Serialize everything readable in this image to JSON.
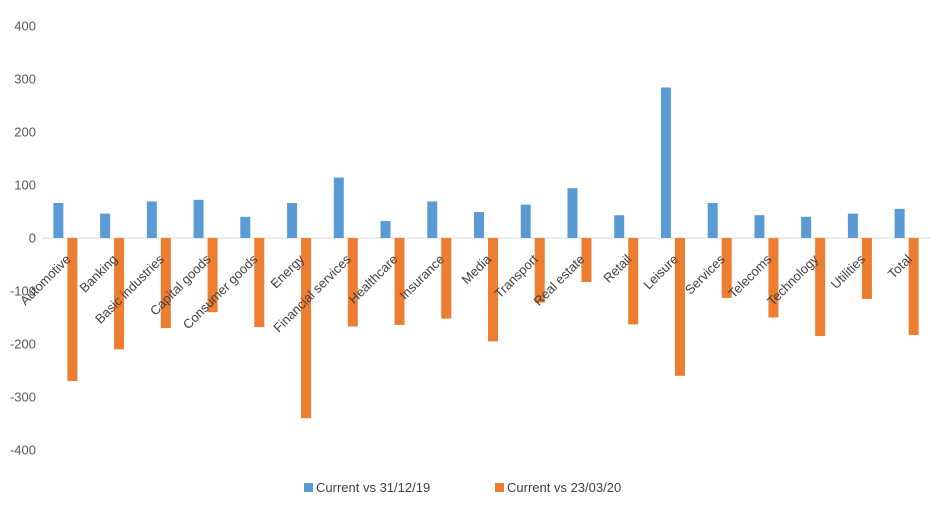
{
  "chart_data": {
    "type": "bar",
    "title": "",
    "xlabel": "",
    "ylabel": "",
    "ylim": [
      -400,
      400
    ],
    "yticks": [
      400,
      300,
      200,
      100,
      0,
      -100,
      -200,
      -300,
      -400
    ],
    "grid": false,
    "legend_position": "bottom",
    "categories": [
      "Automotive",
      "Banking",
      "Basic industries",
      "Capital goods",
      "Consumer goods",
      "Energy",
      "Financial services",
      "Healthcare",
      "Insurance",
      "Media",
      "Transport",
      "Real estate",
      "Retail",
      "Leisure",
      "Services",
      "Telecoms",
      "Technology",
      "Utilities",
      "Total"
    ],
    "series": [
      {
        "name": "Current vs 31/12/19",
        "color": "#5B9BD5",
        "values": [
          66,
          46,
          69,
          72,
          40,
          66,
          114,
          32,
          69,
          49,
          63,
          94,
          43,
          284,
          66,
          43,
          40,
          46,
          55
        ]
      },
      {
        "name": "Current vs 23/03/20",
        "color": "#ED7D31",
        "values": [
          -270,
          -210,
          -170,
          -140,
          -168,
          -340,
          -167,
          -164,
          -152,
          -195,
          -122,
          -83,
          -163,
          -260,
          -113,
          -150,
          -185,
          -115,
          -183
        ]
      }
    ]
  }
}
